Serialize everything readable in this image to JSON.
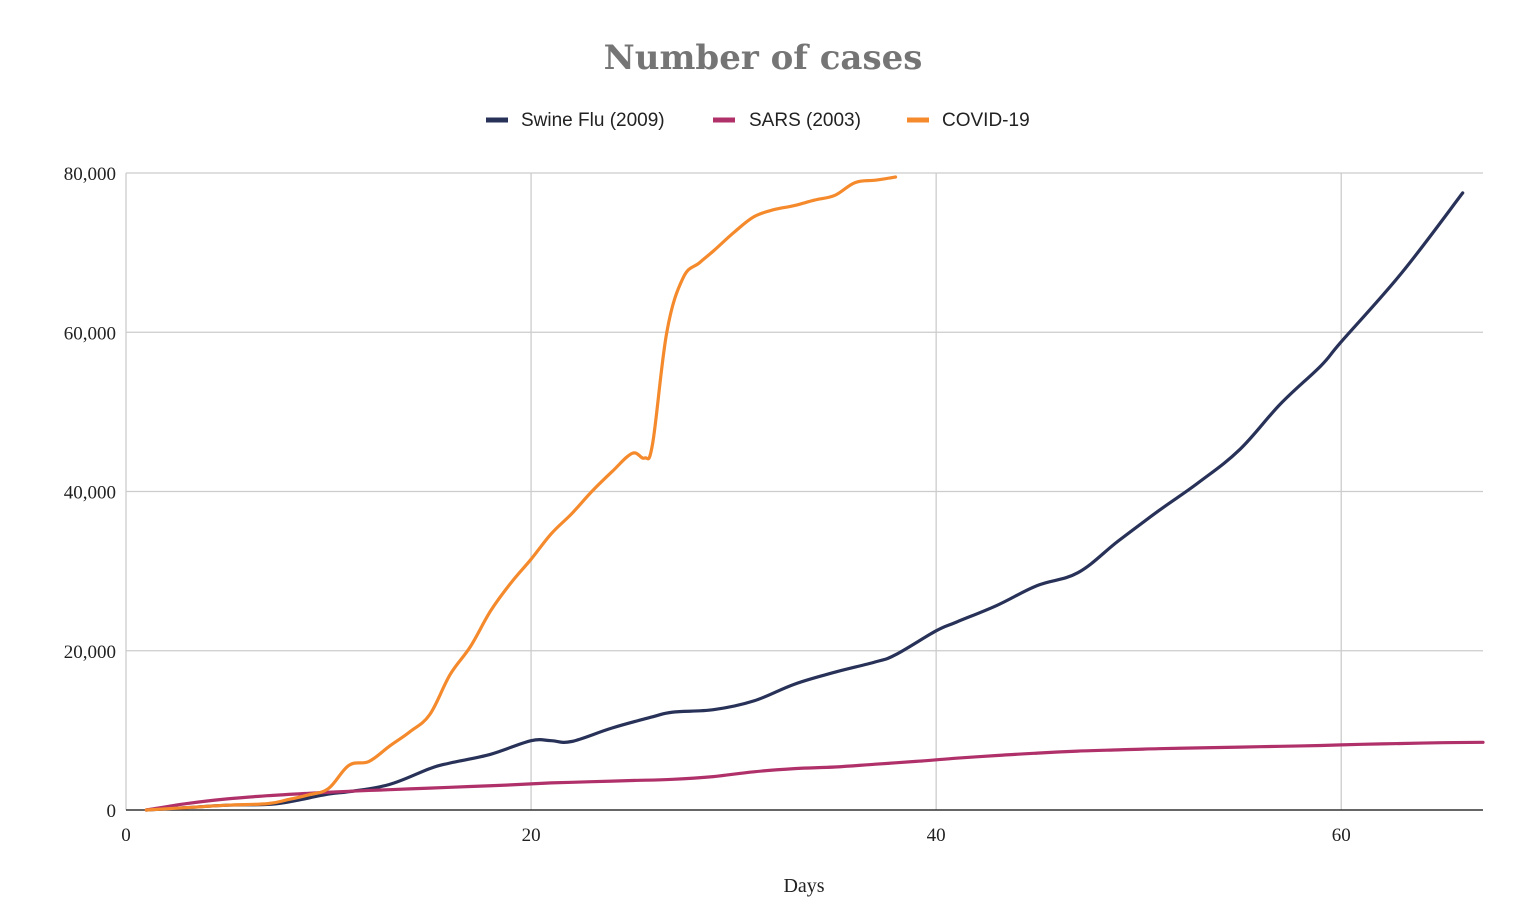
{
  "chart_data": {
    "type": "line",
    "title": "Number of cases",
    "xlabel": "Days",
    "ylabel": "",
    "xlim": [
      0,
      67
    ],
    "ylim": [
      0,
      80000
    ],
    "x_ticks": [
      0,
      20,
      40,
      60
    ],
    "x_tick_labels": [
      "0",
      "20",
      "40",
      "60"
    ],
    "y_ticks": [
      0,
      20000,
      40000,
      60000,
      80000
    ],
    "y_tick_labels": [
      "0",
      "20,000",
      "40,000",
      "60,000",
      "80,000"
    ],
    "grid": true,
    "legend_position": "top-center",
    "series": [
      {
        "name": "Swine Flu (2009)",
        "color": "#283158",
        "points": [
          [
            1,
            0
          ],
          [
            3,
            300
          ],
          [
            5,
            600
          ],
          [
            7,
            700
          ],
          [
            8,
            1000
          ],
          [
            10,
            2000
          ],
          [
            11,
            2300
          ],
          [
            13,
            3200
          ],
          [
            15,
            5200
          ],
          [
            16,
            5900
          ],
          [
            18,
            7000
          ],
          [
            20,
            8700
          ],
          [
            21,
            8700
          ],
          [
            22,
            8600
          ],
          [
            24,
            10300
          ],
          [
            26,
            11700
          ],
          [
            27,
            12300
          ],
          [
            29,
            12600
          ],
          [
            31,
            13700
          ],
          [
            33,
            15800
          ],
          [
            35,
            17300
          ],
          [
            37,
            18600
          ],
          [
            38,
            19500
          ],
          [
            40,
            22500
          ],
          [
            41,
            23600
          ],
          [
            43,
            25700
          ],
          [
            45,
            28200
          ],
          [
            47,
            29800
          ],
          [
            49,
            33800
          ],
          [
            51,
            37600
          ],
          [
            53,
            41200
          ],
          [
            55,
            45300
          ],
          [
            57,
            51000
          ],
          [
            59,
            55800
          ],
          [
            60,
            58800
          ],
          [
            63,
            67500
          ],
          [
            66,
            77500
          ]
        ]
      },
      {
        "name": "SARS (2003)",
        "color": "#B0306A",
        "points": [
          [
            1,
            0
          ],
          [
            3,
            800
          ],
          [
            5,
            1400
          ],
          [
            7,
            1800
          ],
          [
            9,
            2100
          ],
          [
            11,
            2350
          ],
          [
            13,
            2550
          ],
          [
            15,
            2750
          ],
          [
            17,
            2950
          ],
          [
            19,
            3150
          ],
          [
            21,
            3400
          ],
          [
            23,
            3550
          ],
          [
            25,
            3700
          ],
          [
            27,
            3850
          ],
          [
            29,
            4200
          ],
          [
            31,
            4800
          ],
          [
            33,
            5200
          ],
          [
            35,
            5400
          ],
          [
            37,
            5750
          ],
          [
            39,
            6100
          ],
          [
            41,
            6500
          ],
          [
            43,
            6850
          ],
          [
            45,
            7150
          ],
          [
            47,
            7400
          ],
          [
            49,
            7550
          ],
          [
            51,
            7700
          ],
          [
            53,
            7800
          ],
          [
            55,
            7900
          ],
          [
            57,
            8000
          ],
          [
            59,
            8100
          ],
          [
            61,
            8250
          ],
          [
            63,
            8350
          ],
          [
            65,
            8450
          ],
          [
            67,
            8500
          ]
        ]
      },
      {
        "name": "COVID-19",
        "color": "#F58A2D",
        "points": [
          [
            1,
            0
          ],
          [
            3,
            300
          ],
          [
            5,
            600
          ],
          [
            7,
            800
          ],
          [
            8,
            1300
          ],
          [
            9,
            1900
          ],
          [
            10,
            2700
          ],
          [
            11,
            5600
          ],
          [
            12,
            6100
          ],
          [
            13,
            8000
          ],
          [
            14,
            9800
          ],
          [
            15,
            12000
          ],
          [
            16,
            17000
          ],
          [
            17,
            20500
          ],
          [
            18,
            25000
          ],
          [
            19,
            28500
          ],
          [
            20,
            31500
          ],
          [
            21,
            34700
          ],
          [
            22,
            37200
          ],
          [
            23,
            40000
          ],
          [
            24,
            42500
          ],
          [
            25,
            44800
          ],
          [
            25.6,
            44200
          ],
          [
            26,
            46000
          ],
          [
            26.7,
            60000
          ],
          [
            27.5,
            66800
          ],
          [
            28.3,
            68700
          ],
          [
            29,
            70200
          ],
          [
            30,
            72500
          ],
          [
            31,
            74500
          ],
          [
            32,
            75400
          ],
          [
            33,
            75900
          ],
          [
            34,
            76600
          ],
          [
            35,
            77200
          ],
          [
            36,
            78800
          ],
          [
            37,
            79100
          ],
          [
            38,
            79500
          ]
        ]
      }
    ]
  }
}
